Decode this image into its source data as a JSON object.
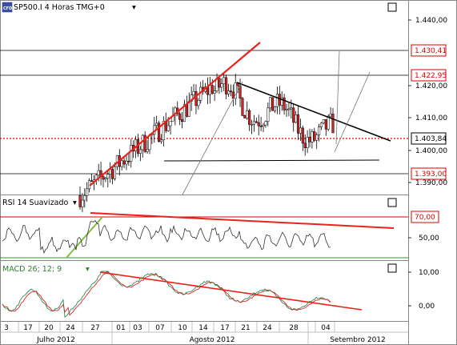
{
  "header": {
    "symbol_badge": "CFD",
    "main_title": "SP500.I 4 Horas TMG+0",
    "rsi_title": "RSI 14 Suavizado",
    "macd_title": "MACD 26; 12; 9"
  },
  "colors": {
    "trendline_red": "#e8231b",
    "candle_up": "#ffffff",
    "candle_down": "#d42222",
    "price_line": "#000000",
    "level_box_red": "#e00000",
    "rsi_green": "#7fbf3f",
    "macd_green": "#2e8b57",
    "macd_red": "#d62828"
  },
  "price_axis": {
    "ticks": [
      "1.440,00",
      "1.420,00",
      "1.410,00",
      "1.400,00",
      "1.390,00"
    ],
    "levels": [
      {
        "label": "1.430,41",
        "style": "red"
      },
      {
        "label": "1.422,95",
        "style": "red"
      },
      {
        "label": "1.403,84",
        "style": "black"
      },
      {
        "label": "1.393,00",
        "style": "red"
      }
    ]
  },
  "rsi_axis": {
    "ticks": [
      "70,00",
      "50,00"
    ]
  },
  "macd_axis": {
    "ticks": [
      "10,00",
      "0,00"
    ]
  },
  "time_axis": {
    "day_labels": [
      "3",
      "17",
      "20",
      "24",
      "27",
      "01",
      "03",
      "07",
      "10",
      "14",
      "17",
      "21",
      "24",
      "28",
      "04"
    ],
    "month_labels": [
      "Julho 2012",
      "Agosto 2012",
      "Setembro 2012"
    ]
  },
  "chart_data": {
    "type": "candlestick",
    "instrument": "SP500.I",
    "timeframe": "4 Horas",
    "x_axis": "time",
    "price_ylim": [
      1386,
      1446
    ],
    "indicators": [
      {
        "name": "RSI 14 Suavizado",
        "levels": [
          70,
          30
        ],
        "tick_labels": [
          "70,00",
          "50,00"
        ]
      },
      {
        "name": "MACD 26; 12; 9",
        "tick_labels": [
          "10,00",
          "0,00"
        ]
      }
    ],
    "price_levels": [
      1430.41,
      1422.95,
      1403.84,
      1393.0
    ]
  }
}
